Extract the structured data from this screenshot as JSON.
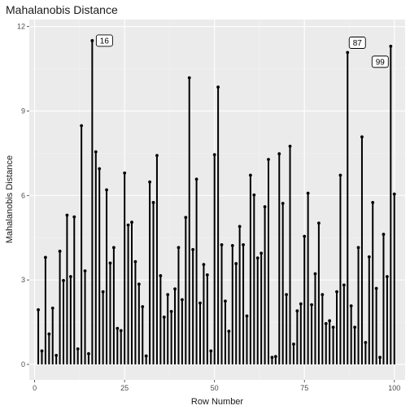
{
  "chart_data": {
    "type": "lollipop",
    "title": "Mahalanobis Distance",
    "xlabel": "Row Number",
    "ylabel": "Mahalanobis Distance",
    "xlim": [
      -1.5,
      103
    ],
    "ylim": [
      -0.55,
      12.25
    ],
    "xticks": [
      0,
      25,
      50,
      75,
      100
    ],
    "yticks": [
      0,
      3,
      6,
      9,
      12
    ],
    "grid": true,
    "colors": {
      "panel": "#ebebeb",
      "grid_major": "#ffffff",
      "grid_minor": "#f2f2f2",
      "mark": "#000000",
      "text": "#4d4d4d"
    },
    "points": [
      {
        "x": 1,
        "y": 1.94
      },
      {
        "x": 2,
        "y": 0.48
      },
      {
        "x": 3,
        "y": 3.8
      },
      {
        "x": 4,
        "y": 1.08
      },
      {
        "x": 5,
        "y": 2.0
      },
      {
        "x": 6,
        "y": 0.32
      },
      {
        "x": 7,
        "y": 4.02
      },
      {
        "x": 8,
        "y": 2.98
      },
      {
        "x": 9,
        "y": 5.3
      },
      {
        "x": 10,
        "y": 3.12
      },
      {
        "x": 11,
        "y": 5.24
      },
      {
        "x": 12,
        "y": 0.55
      },
      {
        "x": 13,
        "y": 8.48
      },
      {
        "x": 14,
        "y": 3.32
      },
      {
        "x": 15,
        "y": 0.38
      },
      {
        "x": 16,
        "y": 11.5
      },
      {
        "x": 17,
        "y": 7.55
      },
      {
        "x": 18,
        "y": 6.95
      },
      {
        "x": 19,
        "y": 2.58
      },
      {
        "x": 20,
        "y": 6.2
      },
      {
        "x": 21,
        "y": 3.6
      },
      {
        "x": 22,
        "y": 4.15
      },
      {
        "x": 23,
        "y": 1.28
      },
      {
        "x": 24,
        "y": 1.2
      },
      {
        "x": 25,
        "y": 6.8
      },
      {
        "x": 26,
        "y": 4.95
      },
      {
        "x": 27,
        "y": 5.05
      },
      {
        "x": 28,
        "y": 3.65
      },
      {
        "x": 29,
        "y": 2.85
      },
      {
        "x": 30,
        "y": 2.05
      },
      {
        "x": 31,
        "y": 0.3
      },
      {
        "x": 32,
        "y": 6.48
      },
      {
        "x": 33,
        "y": 5.75
      },
      {
        "x": 34,
        "y": 7.42
      },
      {
        "x": 35,
        "y": 3.15
      },
      {
        "x": 36,
        "y": 1.68
      },
      {
        "x": 37,
        "y": 2.48
      },
      {
        "x": 38,
        "y": 1.88
      },
      {
        "x": 39,
        "y": 2.68
      },
      {
        "x": 40,
        "y": 4.15
      },
      {
        "x": 41,
        "y": 2.3
      },
      {
        "x": 42,
        "y": 5.22
      },
      {
        "x": 43,
        "y": 10.18
      },
      {
        "x": 44,
        "y": 4.08
      },
      {
        "x": 45,
        "y": 6.58
      },
      {
        "x": 46,
        "y": 2.18
      },
      {
        "x": 47,
        "y": 3.55
      },
      {
        "x": 48,
        "y": 3.18
      },
      {
        "x": 49,
        "y": 0.48
      },
      {
        "x": 50,
        "y": 7.45
      },
      {
        "x": 51,
        "y": 9.85
      },
      {
        "x": 52,
        "y": 4.25
      },
      {
        "x": 53,
        "y": 2.25
      },
      {
        "x": 54,
        "y": 1.18
      },
      {
        "x": 55,
        "y": 4.22
      },
      {
        "x": 56,
        "y": 3.58
      },
      {
        "x": 57,
        "y": 4.9
      },
      {
        "x": 58,
        "y": 4.25
      },
      {
        "x": 59,
        "y": 1.72
      },
      {
        "x": 60,
        "y": 6.72
      },
      {
        "x": 61,
        "y": 6.02
      },
      {
        "x": 62,
        "y": 3.78
      },
      {
        "x": 63,
        "y": 3.95
      },
      {
        "x": 64,
        "y": 5.6
      },
      {
        "x": 65,
        "y": 7.28
      },
      {
        "x": 66,
        "y": 0.25
      },
      {
        "x": 67,
        "y": 0.28
      },
      {
        "x": 68,
        "y": 7.48
      },
      {
        "x": 69,
        "y": 5.72
      },
      {
        "x": 70,
        "y": 2.48
      },
      {
        "x": 71,
        "y": 7.75
      },
      {
        "x": 72,
        "y": 0.72
      },
      {
        "x": 73,
        "y": 1.9
      },
      {
        "x": 74,
        "y": 2.15
      },
      {
        "x": 75,
        "y": 4.55
      },
      {
        "x": 76,
        "y": 6.08
      },
      {
        "x": 77,
        "y": 2.12
      },
      {
        "x": 78,
        "y": 3.22
      },
      {
        "x": 79,
        "y": 5.02
      },
      {
        "x": 80,
        "y": 2.48
      },
      {
        "x": 81,
        "y": 1.45
      },
      {
        "x": 82,
        "y": 1.55
      },
      {
        "x": 83,
        "y": 1.32
      },
      {
        "x": 84,
        "y": 2.58
      },
      {
        "x": 85,
        "y": 6.72
      },
      {
        "x": 86,
        "y": 2.82
      },
      {
        "x": 87,
        "y": 11.08
      },
      {
        "x": 88,
        "y": 2.08
      },
      {
        "x": 89,
        "y": 1.32
      },
      {
        "x": 90,
        "y": 4.15
      },
      {
        "x": 91,
        "y": 8.08
      },
      {
        "x": 92,
        "y": 0.78
      },
      {
        "x": 93,
        "y": 3.82
      },
      {
        "x": 94,
        "y": 5.75
      },
      {
        "x": 95,
        "y": 2.7
      },
      {
        "x": 96,
        "y": 0.25
      },
      {
        "x": 97,
        "y": 4.62
      },
      {
        "x": 98,
        "y": 3.12
      },
      {
        "x": 99,
        "y": 11.3
      },
      {
        "x": 100,
        "y": 6.05
      }
    ],
    "labels": [
      {
        "x": 16,
        "text": "16"
      },
      {
        "x": 87,
        "text": "87"
      },
      {
        "x": 99,
        "text": "99"
      }
    ]
  }
}
